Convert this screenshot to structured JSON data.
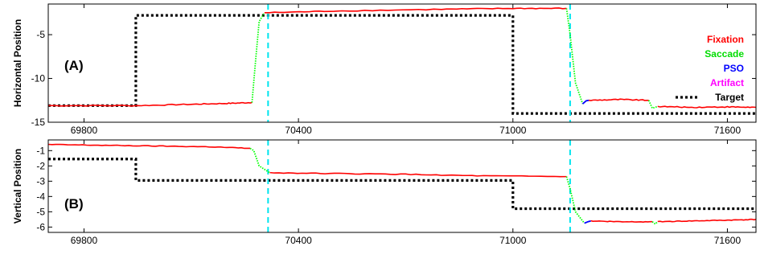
{
  "chart_data": [
    {
      "type": "line",
      "panel_label": "(A)",
      "ylabel": "Horizontal Position",
      "xlim": [
        69700,
        71680
      ],
      "ylim": [
        -15,
        -1.5
      ],
      "xticks": [
        69800,
        70400,
        71000,
        71600
      ],
      "yticks": [
        -5,
        -10,
        -15
      ],
      "colors": {
        "Fixation": "#ff0000",
        "Saccade": "#00ff00",
        "PSO": "#0000ff",
        "Artifact": "#ff00ff",
        "Target": "#000000",
        "marker": "#00e5ee"
      },
      "vlines": [
        70315,
        71160
      ],
      "series": [
        {
          "name": "Target",
          "style": "dotted",
          "x": [
            69700,
            69945,
            69945,
            71000,
            71000,
            71680
          ],
          "y": [
            -13.1,
            -13.1,
            -2.8,
            -2.8,
            -14.0,
            -14.0
          ]
        },
        {
          "name": "Fixation",
          "segments": [
            {
              "x": [
                69700,
                69950,
                70100,
                70200,
                70270
              ],
              "y": [
                -13.1,
                -13.1,
                -12.95,
                -12.85,
                -12.75
              ]
            },
            {
              "x": [
                70305,
                70500,
                70800,
                71000,
                71150
              ],
              "y": [
                -2.5,
                -2.3,
                -2.1,
                -2.0,
                -2.0
              ]
            },
            {
              "x": [
                71212,
                71300,
                71380
              ],
              "y": [
                -12.5,
                -12.4,
                -12.5
              ]
            },
            {
              "x": [
                71405,
                71500,
                71600,
                71680
              ],
              "y": [
                -13.2,
                -13.3,
                -13.25,
                -13.3
              ]
            }
          ]
        },
        {
          "name": "Saccade",
          "segments": [
            {
              "x": [
                70270,
                70280,
                70290,
                70305
              ],
              "y": [
                -12.75,
                -8.0,
                -3.5,
                -2.5
              ]
            },
            {
              "x": [
                71150,
                71160,
                71175,
                71195
              ],
              "y": [
                -2.0,
                -5.0,
                -10.5,
                -12.9
              ]
            },
            {
              "x": [
                71380,
                71390,
                71405
              ],
              "y": [
                -12.5,
                -13.4,
                -13.2
              ]
            }
          ]
        },
        {
          "name": "PSO",
          "segments": [
            {
              "x": [
                71195,
                71205,
                71212
              ],
              "y": [
                -12.9,
                -12.55,
                -12.5
              ]
            }
          ]
        }
      ]
    },
    {
      "type": "line",
      "panel_label": "(B)",
      "ylabel": "Vertical Position",
      "xlim": [
        69700,
        71680
      ],
      "ylim": [
        -6.35,
        -0.3
      ],
      "xticks": [
        69800,
        70400,
        71000,
        71600
      ],
      "yticks": [
        -1,
        -2,
        -3,
        -4,
        -5,
        -6
      ],
      "colors": {
        "Fixation": "#ff0000",
        "Saccade": "#00ff00",
        "PSO": "#0000ff",
        "Artifact": "#ff00ff",
        "Target": "#000000",
        "marker": "#00e5ee"
      },
      "vlines": [
        70315,
        71160
      ],
      "series": [
        {
          "name": "Target",
          "style": "dotted",
          "x": [
            69700,
            69945,
            69945,
            71000,
            71000,
            71680
          ],
          "y": [
            -1.55,
            -1.55,
            -2.95,
            -2.95,
            -4.8,
            -4.8
          ]
        },
        {
          "name": "Fixation",
          "segments": [
            {
              "x": [
                69700,
                69850,
                70000,
                70150,
                70265
              ],
              "y": [
                -0.6,
                -0.65,
                -0.7,
                -0.75,
                -0.85
              ]
            },
            {
              "x": [
                70320,
                70500,
                70700,
                70900,
                71150
              ],
              "y": [
                -2.45,
                -2.5,
                -2.55,
                -2.65,
                -2.7
              ]
            },
            {
              "x": [
                71218,
                71300,
                71390
              ],
              "y": [
                -5.6,
                -5.65,
                -5.65
              ]
            },
            {
              "x": [
                71405,
                71500,
                71600,
                71680
              ],
              "y": [
                -5.65,
                -5.6,
                -5.55,
                -5.5
              ]
            }
          ]
        },
        {
          "name": "Saccade",
          "segments": [
            {
              "x": [
                70265,
                70275,
                70290,
                70320
              ],
              "y": [
                -0.85,
                -1.0,
                -2.0,
                -2.45
              ]
            },
            {
              "x": [
                71150,
                71160,
                71175,
                71200
              ],
              "y": [
                -2.7,
                -3.5,
                -5.0,
                -5.75
              ]
            },
            {
              "x": [
                71390,
                71398,
                71405
              ],
              "y": [
                -5.65,
                -5.8,
                -5.65
              ]
            }
          ]
        },
        {
          "name": "PSO",
          "segments": [
            {
              "x": [
                71200,
                71210,
                71218
              ],
              "y": [
                -5.75,
                -5.65,
                -5.6
              ]
            }
          ]
        }
      ]
    }
  ],
  "legend": {
    "placement": "right",
    "items": [
      {
        "label": "Fixation",
        "color": "#ff0000",
        "line": false
      },
      {
        "label": "Saccade",
        "color": "#00dd00",
        "line": false
      },
      {
        "label": "PSO",
        "color": "#0000ff",
        "line": false
      },
      {
        "label": "Artifact",
        "color": "#ff00ff",
        "line": false
      },
      {
        "label": "Target",
        "color": "#000000",
        "line": true
      }
    ]
  }
}
